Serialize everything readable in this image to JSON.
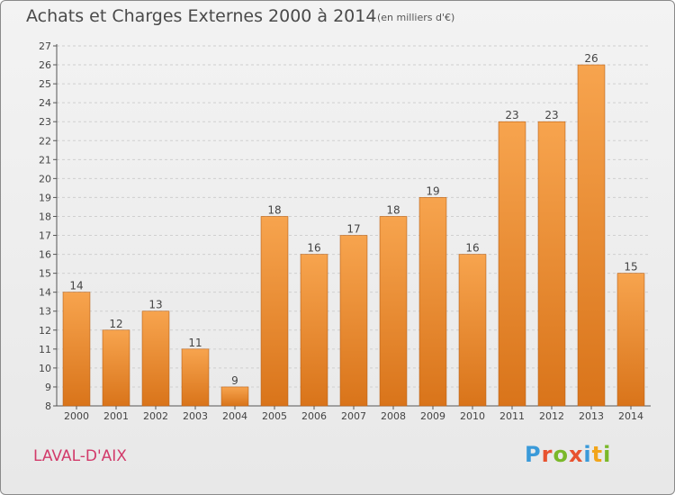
{
  "title": "Achats et Charges Externes 2000 à 2014",
  "subtitle": "(en milliers d'€)",
  "commune": "LAVAL-D'AIX",
  "logo": {
    "letters": [
      "P",
      "r",
      "o",
      "x",
      "i",
      "t",
      "i"
    ],
    "colors": [
      "#3a9ad9",
      "#e8522f",
      "#7ab829",
      "#e8522f",
      "#3a9ad9",
      "#f2a51a",
      "#7ab829"
    ]
  },
  "colors": {
    "bar_top": "#f7a44e",
    "bar_bottom": "#d9741a",
    "bar_border": "#b8621a",
    "commune": "#d23a6a"
  },
  "chart_data": {
    "type": "bar",
    "categories": [
      "2000",
      "2001",
      "2002",
      "2003",
      "2004",
      "2005",
      "2006",
      "2007",
      "2008",
      "2009",
      "2010",
      "2011",
      "2012",
      "2013",
      "2014"
    ],
    "values": [
      14,
      12,
      13,
      11,
      9,
      18,
      16,
      17,
      18,
      19,
      16,
      23,
      23,
      26,
      15
    ],
    "ylim": [
      8,
      27
    ],
    "yticks": [
      8,
      9,
      10,
      11,
      12,
      13,
      14,
      15,
      16,
      17,
      18,
      19,
      20,
      21,
      22,
      23,
      24,
      25,
      26,
      27
    ],
    "grid": true,
    "data_labels": true
  }
}
